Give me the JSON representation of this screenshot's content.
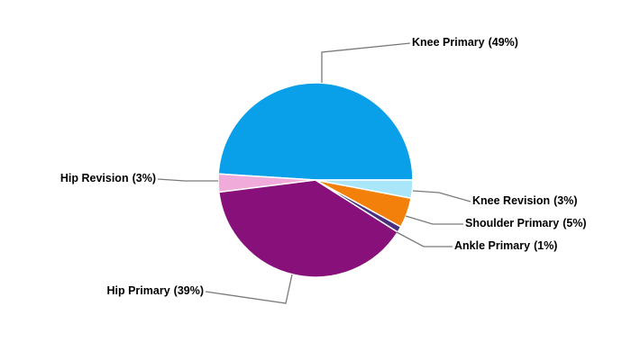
{
  "chart_data": {
    "type": "pie",
    "categories": [
      "Knee Primary",
      "Hip Revision",
      "Hip Primary",
      "Ankle Primary",
      "Shoulder Primary",
      "Knee Revision"
    ],
    "values": [
      49,
      3,
      39,
      1,
      5,
      3
    ],
    "value_labels": [
      "(49%)",
      "(3%)",
      "(39%)",
      "(1%)",
      "(5%)",
      "(3%)"
    ],
    "colors": [
      "#0aa0e9",
      "#f0abdb",
      "#87107b",
      "#4a2f7e",
      "#f2800a",
      "#aae6fa"
    ]
  }
}
